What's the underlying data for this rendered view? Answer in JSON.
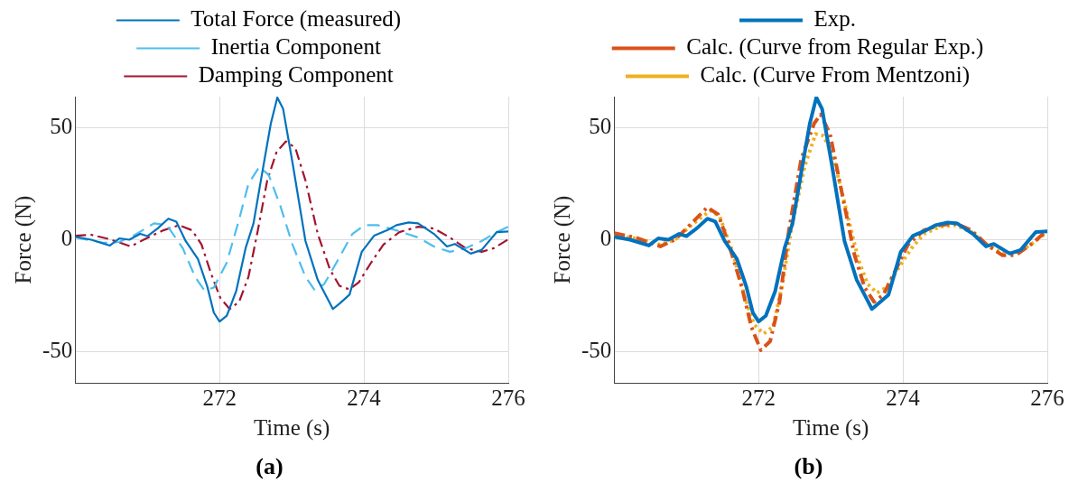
{
  "chart_data": [
    {
      "type": "line",
      "xlabel": "Time (s)",
      "ylabel": "Force (N)",
      "xlim": [
        270,
        276
      ],
      "ylim": [
        -64,
        64
      ],
      "xticks": [
        272,
        274,
        276
      ],
      "yticks": [
        -50,
        0,
        50
      ],
      "grid": true,
      "legend": "top",
      "marker": "none",
      "annotations": [
        "(a)"
      ],
      "series": [
        {
          "name": "Total Force (measured)",
          "color": "#0072bd",
          "line_style": "solid",
          "x": [
            270,
            270.22,
            270.48,
            270.61,
            270.75,
            270.9,
            271.0,
            271.14,
            271.29,
            271.4,
            271.53,
            271.7,
            271.83,
            271.92,
            272.0,
            272.1,
            272.23,
            272.36,
            272.47,
            272.58,
            272.71,
            272.8,
            272.88,
            273.01,
            273.19,
            273.36,
            273.49,
            273.57,
            273.66,
            273.8,
            273.97,
            274.14,
            274.32,
            274.45,
            274.62,
            274.75,
            274.97,
            275.15,
            275.26,
            275.48,
            275.63,
            275.84,
            276
          ],
          "values": [
            1.3,
            0,
            -2.6,
            0.6,
            0,
            2.6,
            1.6,
            5,
            9.4,
            8.1,
            -0.6,
            -8.6,
            -21,
            -32.6,
            -36.6,
            -34,
            -23,
            -3.8,
            7.3,
            28,
            52,
            63.6,
            58.5,
            34.5,
            -0.6,
            -18,
            -26,
            -31,
            -28.6,
            -24.6,
            -5.4,
            1.8,
            4.2,
            6.5,
            7.7,
            7.3,
            2.6,
            -3,
            -1.9,
            -6.2,
            -4.6,
            3.4,
            3.7
          ]
        },
        {
          "name": "Inertia Component",
          "color": "#4dbeee",
          "line_style": "dashed",
          "x": [
            270,
            270.4,
            270.61,
            270.83,
            271.09,
            271.27,
            271.49,
            271.66,
            271.79,
            271.92,
            272.1,
            272.27,
            272.4,
            272.55,
            272.68,
            272.84,
            273.01,
            273.19,
            273.32,
            273.45,
            273.62,
            273.84,
            274.01,
            274.19,
            274.45,
            274.75,
            274.97,
            275.19,
            275.41,
            275.63,
            275.84,
            276
          ],
          "values": [
            1,
            -1.4,
            -1,
            2.2,
            7.3,
            6.5,
            -3.8,
            -16.6,
            -22.7,
            -21.4,
            -10.2,
            9,
            25,
            32.6,
            29,
            15.3,
            -2.2,
            -16.6,
            -22.7,
            -19.8,
            -10.2,
            2.6,
            6.5,
            6.5,
            4.2,
            1,
            -3,
            -5.4,
            -3.8,
            -0.6,
            3.4,
            5.8
          ]
        },
        {
          "name": "Damping Component",
          "color": "#a2142f",
          "line_style": "dashdot",
          "x": [
            270,
            270.22,
            270.48,
            270.77,
            270.96,
            271.22,
            271.44,
            271.62,
            271.75,
            271.88,
            272.01,
            272.14,
            272.27,
            272.4,
            272.53,
            272.66,
            272.79,
            272.92,
            273.05,
            273.19,
            273.36,
            273.53,
            273.66,
            273.8,
            273.93,
            274.1,
            274.27,
            274.49,
            274.75,
            274.97,
            275.19,
            275.41,
            275.63,
            275.8,
            276
          ],
          "values": [
            1.8,
            2.2,
            0.2,
            -3,
            0.2,
            4.2,
            6.5,
            4.2,
            -2.2,
            -15,
            -26,
            -31,
            -27.8,
            -16.6,
            4.2,
            26.5,
            39.3,
            44,
            41,
            26.5,
            2.6,
            -13.4,
            -20.6,
            -22.2,
            -19,
            -10.2,
            -2.2,
            3.4,
            5.8,
            5,
            1,
            -3.8,
            -5.4,
            -3.8,
            0.2
          ]
        }
      ]
    },
    {
      "type": "line",
      "xlabel": "Time (s)",
      "ylabel": "Force (N)",
      "xlim": [
        270,
        276
      ],
      "ylim": [
        -64,
        64
      ],
      "xticks": [
        272,
        274,
        276
      ],
      "yticks": [
        -50,
        0,
        50
      ],
      "grid": true,
      "legend": "top",
      "marker": "none",
      "annotations": [
        "(b)"
      ],
      "series": [
        {
          "name": "Exp.",
          "color": "#0072bd",
          "line_style": "solid",
          "x": [
            270,
            270.22,
            270.48,
            270.61,
            270.75,
            270.9,
            271.0,
            271.14,
            271.29,
            271.4,
            271.53,
            271.7,
            271.83,
            271.92,
            272.0,
            272.1,
            272.23,
            272.36,
            272.47,
            272.58,
            272.71,
            272.8,
            272.88,
            273.01,
            273.19,
            273.36,
            273.49,
            273.57,
            273.66,
            273.8,
            273.97,
            274.14,
            274.32,
            274.45,
            274.62,
            274.75,
            274.97,
            275.15,
            275.26,
            275.48,
            275.63,
            275.84,
            276
          ],
          "values": [
            1.3,
            0,
            -2.6,
            0.6,
            0,
            2.6,
            1.6,
            5,
            9.4,
            8.1,
            -0.6,
            -8.6,
            -21,
            -32.6,
            -36.6,
            -34,
            -23,
            -3.8,
            7.3,
            28,
            52,
            63.6,
            58.5,
            34.5,
            -0.6,
            -18,
            -26,
            -31,
            -28.6,
            -24.6,
            -5.4,
            1.8,
            4.2,
            6.5,
            7.7,
            7.3,
            2.6,
            -3,
            -1.9,
            -6.2,
            -4.6,
            3.4,
            3.7
          ]
        },
        {
          "name": "Calc. (Curve from Regular Exp.)",
          "color": "#d95319",
          "line_style": "dashdot",
          "x": [
            270,
            270.29,
            270.64,
            270.85,
            271.07,
            271.29,
            271.44,
            271.59,
            271.77,
            271.9,
            272.03,
            272.16,
            272.29,
            272.42,
            272.59,
            272.77,
            272.86,
            272.99,
            273.16,
            273.33,
            273.47,
            273.6,
            273.73,
            273.9,
            274.07,
            274.29,
            274.51,
            274.73,
            274.95,
            275.16,
            275.38,
            275.56,
            275.77,
            276
          ],
          "values": [
            2.9,
            1,
            -3,
            0.2,
            7.3,
            14.5,
            11.3,
            -2.2,
            -21.4,
            -39,
            -49.4,
            -45.4,
            -27.8,
            4.2,
            36,
            52,
            56,
            47.3,
            20,
            -7,
            -21.4,
            -27.8,
            -24.6,
            -13.4,
            -2.2,
            4.2,
            6.5,
            7.3,
            4.2,
            -2.2,
            -7,
            -7,
            -2.2,
            4.2
          ]
        },
        {
          "name": "Calc. (Curve From Mentzoni)",
          "color": "#edb120",
          "line_style": "dotted",
          "x": [
            270,
            270.29,
            270.64,
            270.85,
            271.07,
            271.33,
            271.46,
            271.64,
            271.81,
            271.94,
            272.07,
            272.2,
            272.33,
            272.46,
            272.64,
            272.79,
            272.9,
            273.03,
            273.2,
            273.38,
            273.51,
            273.64,
            273.77,
            273.94,
            274.12,
            274.29,
            274.51,
            274.73,
            274.95,
            275.16,
            275.38,
            275.6,
            275.77,
            276
          ],
          "values": [
            2.2,
            0.6,
            -2.2,
            0.2,
            6.5,
            13,
            10.5,
            -5.4,
            -26,
            -38,
            -42,
            -39,
            -19.8,
            5.8,
            33,
            47.3,
            46.5,
            37.7,
            15.3,
            -8.6,
            -19.8,
            -23.8,
            -21.4,
            -12.5,
            -3.8,
            2.6,
            5.8,
            6.5,
            3.4,
            -2.2,
            -6.2,
            -5.4,
            -2.2,
            3.4
          ]
        }
      ]
    }
  ]
}
